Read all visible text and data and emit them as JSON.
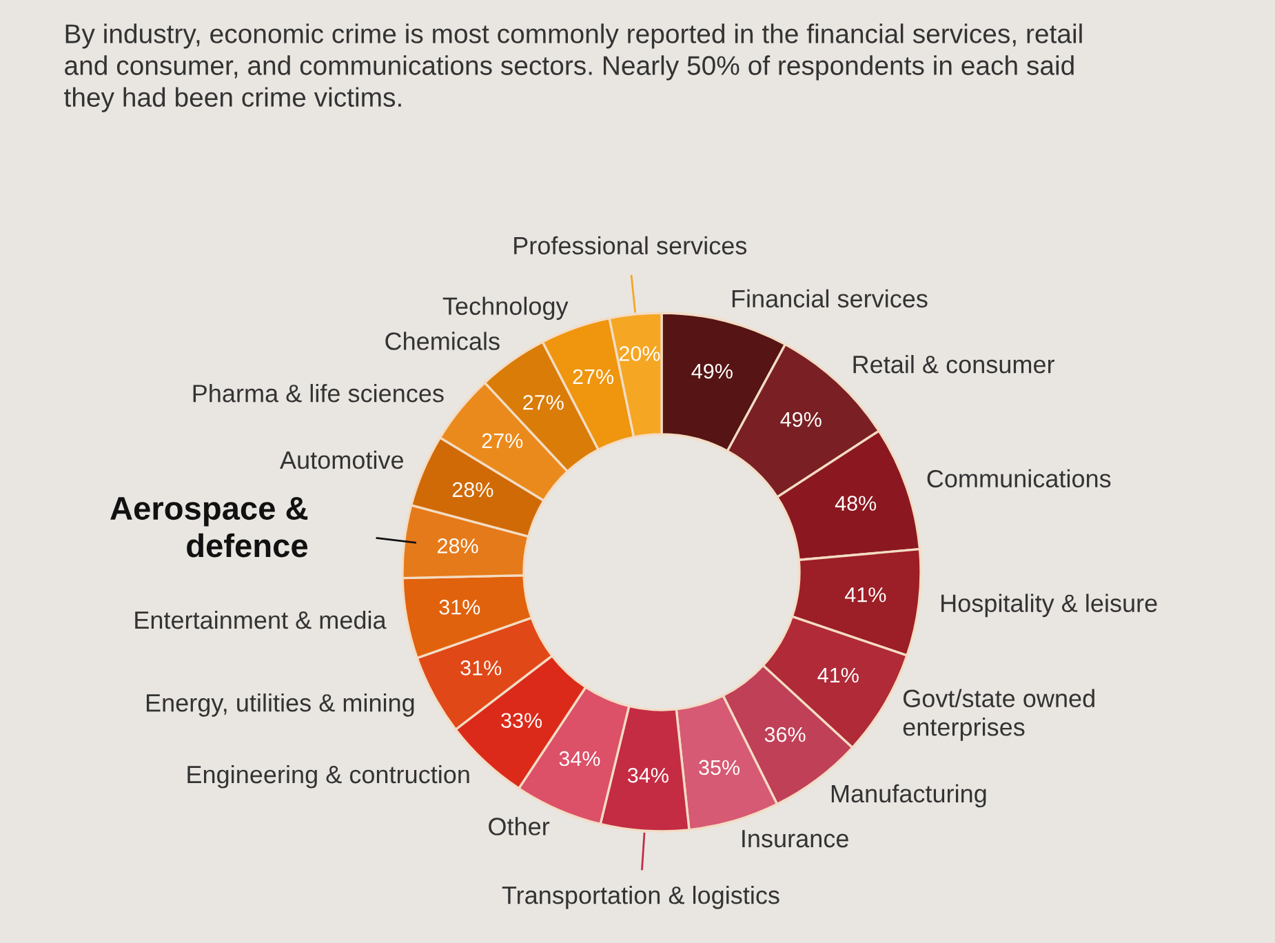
{
  "chart_data": {
    "type": "donut",
    "title": "By industry, economic crime is most commonly reported in the financial services, retail\nand consumer, and communications sectors. Nearly 50% of respondents in each said\nthey had been crime victims.",
    "categories": [
      "Financial services",
      "Retail & consumer",
      "Communications",
      "Hospitality & leisure",
      "Govt/state owned\nenterprises",
      "Manufacturing",
      "Insurance",
      "Transportation & logistics",
      "Other",
      "Engineering & contruction",
      "Energy, utilities & mining",
      "Entertainment & media",
      "Aerospace &\ndefence",
      "Automotive",
      "Pharma & life sciences",
      "Chemicals",
      "Technology",
      "Professional services"
    ],
    "values": [
      49,
      49,
      48,
      41,
      41,
      36,
      35,
      34,
      34,
      33,
      31,
      31,
      28,
      28,
      27,
      27,
      27,
      20
    ],
    "value_labels": [
      "49%",
      "49%",
      "48%",
      "41%",
      "41%",
      "36%",
      "35%",
      "34%",
      "34%",
      "33%",
      "31%",
      "31%",
      "28%",
      "28%",
      "27%",
      "27%",
      "27%",
      "20%"
    ],
    "colors": [
      "#561414",
      "#7a2024",
      "#8b1820",
      "#9c1e26",
      "#b02a38",
      "#c04058",
      "#d65a74",
      "#c42c44",
      "#dc5068",
      "#dc2a1a",
      "#e04818",
      "#e0620c",
      "#e57a1a",
      "#d06a06",
      "#eb8a1c",
      "#da7c08",
      "#ef960e",
      "#f5a623"
    ]
  }
}
